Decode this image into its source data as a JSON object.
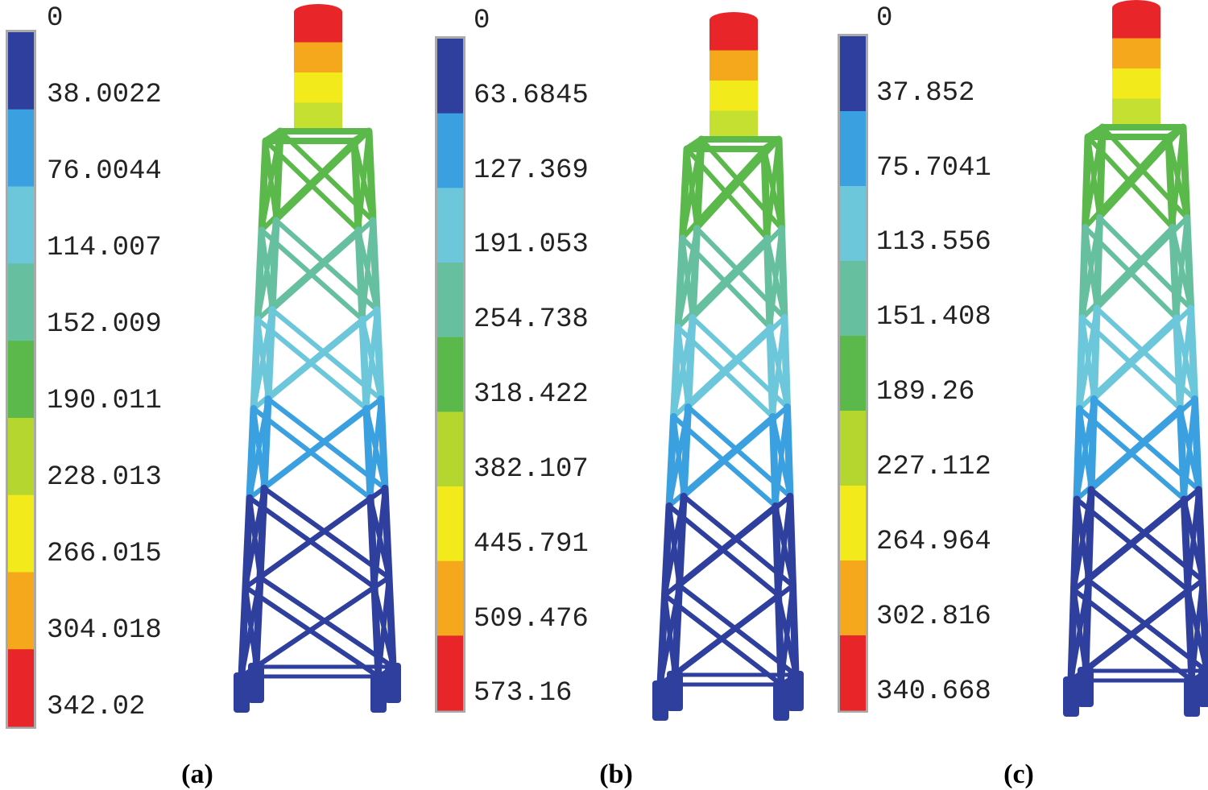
{
  "panels": [
    {
      "caption": "(a)",
      "legend": [
        "0",
        "38.0022",
        "76.0044",
        "114.007",
        "152.009",
        "190.011",
        "228.013",
        "266.015",
        "304.018",
        "342.02"
      ]
    },
    {
      "caption": "(b)",
      "legend": [
        "0",
        "63.6845",
        "127.369",
        "191.053",
        "254.738",
        "318.422",
        "382.107",
        "445.791",
        "509.476",
        "573.16"
      ]
    },
    {
      "caption": "(c)",
      "legend": [
        "0",
        "37.852",
        "75.7041",
        "113.556",
        "151.408",
        "189.26",
        "227.112",
        "264.964",
        "302.816",
        "340.668"
      ]
    }
  ],
  "scale_colors": [
    "#2e3f9e",
    "#3aa0e0",
    "#6cc7db",
    "#66c0a0",
    "#5ab94a",
    "#b5d62f",
    "#f2ea1a",
    "#f5a81c",
    "#e8262a"
  ]
}
